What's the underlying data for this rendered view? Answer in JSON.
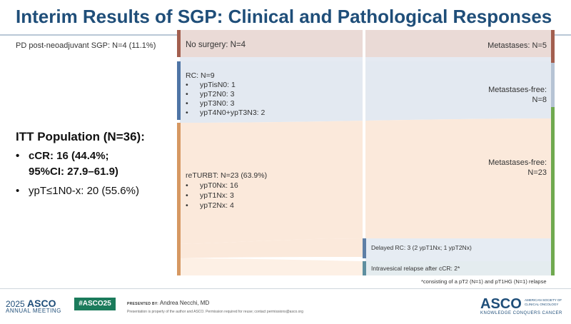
{
  "title": "Interim Results of SGP: Clinical and Pathological Responses",
  "pd_label": "PD post-neoadjuvant SGP: N=4 (11.1%)",
  "itt": {
    "heading": "ITT Population (N=36):",
    "bullet1_line1": "cCR: 16 (44.4%;",
    "bullet1_line2": "95%CI: 27.9–61.9)",
    "bullet2": "ypT≤1N0-x: 20 (55.6%)",
    "bullet_symbol": "•"
  },
  "left_nodes": {
    "no_surgery": "No surgery: N=4",
    "rc_title": "RC: N=9",
    "rc_items": [
      "ypTisN0: 1",
      "ypT2N0: 3",
      "ypT3N0: 3",
      "ypT4N0+ypT3N3: 2"
    ],
    "returbt_title": "reTURBT: N=23 (63.9%)",
    "returbt_items": [
      "ypT0Nx: 16",
      "ypT1Nx: 3",
      "ypT2Nx: 4"
    ]
  },
  "mid_nodes": {
    "delayed_rc": "Delayed RC: 3 (2 ypT1Nx; 1 ypT2Nx)",
    "intravesical": "Intravesical relapse after cCR: 2*"
  },
  "right_nodes": {
    "metastases": "Metastases: N=5",
    "mf1_line1": "Metastases-free:",
    "mf1_line2": "N=8",
    "mf2_line1": "Metastases-free:",
    "mf2_line2": "N=23"
  },
  "footnote": "*consisting of a pT2 (N=1) and pT1HG (N=1) relapse",
  "footer": {
    "year": "2025",
    "asco": "ASCO",
    "annual_meeting": "ANNUAL MEETING",
    "hashtag": "#ASCO25",
    "presented_by": "PRESENTED BY:",
    "presenter": "Andrea Necchi, MD",
    "disclaimer": "Presentation is property of the author and ASCO. Permission required for reuse; contact permissions@asco.org",
    "logo": "ASCO",
    "logo_side1": "AMERICAN SOCIETY OF",
    "logo_side2": "CLINICAL ONCOLOGY",
    "tagline": "KNOWLEDGE CONQUERS CANCER"
  },
  "colors": {
    "title": "#1f4e79",
    "no_surgery_bar": "#a35f4f",
    "rc_bar": "#4f75a6",
    "returbt_bar": "#d69862",
    "metastases_bar": "#a35f4f",
    "metfree_rc_bar": "#b6c3d4",
    "metfree_turbt_bar": "#70a94f",
    "delayed_rc_bar": "#5e7fa6",
    "intravesical_bar": "#5e8fa0"
  }
}
